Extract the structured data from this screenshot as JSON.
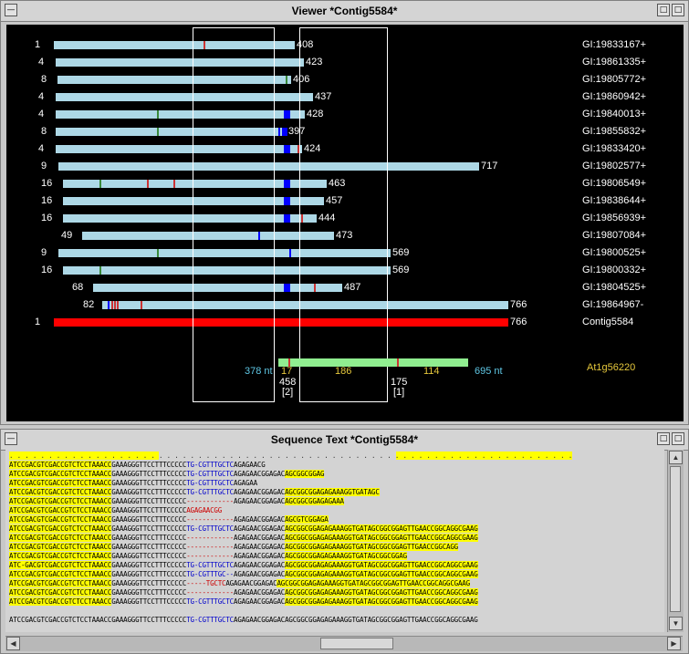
{
  "viewer": {
    "title": "Viewer *Contig5584*",
    "rows": [
      {
        "count": "1",
        "end": "408",
        "acc": "GI:19833167+"
      },
      {
        "count": "4",
        "end": "423",
        "acc": "GI:19861335+"
      },
      {
        "count": "8",
        "end": "406",
        "acc": "GI:19805772+"
      },
      {
        "count": "4",
        "end": "437",
        "acc": "GI:19860942+"
      },
      {
        "count": "4",
        "end": "428",
        "acc": "GI:19840013+"
      },
      {
        "count": "8",
        "end": "397",
        "acc": "GI:19855832+"
      },
      {
        "count": "4",
        "end": "424",
        "acc": "GI:19833420+"
      },
      {
        "count": "9",
        "end": "717",
        "acc": "GI:19802577+"
      },
      {
        "count": "16",
        "end": "463",
        "acc": "GI:19806549+"
      },
      {
        "count": "16",
        "end": "457",
        "acc": "GI:19838644+"
      },
      {
        "count": "16",
        "end": "444",
        "acc": "GI:19856939+"
      },
      {
        "count": "49",
        "end": "473",
        "acc": "GI:19807084+"
      },
      {
        "count": "9",
        "end": "569",
        "acc": "GI:19800525+"
      },
      {
        "count": "16",
        "end": "569",
        "acc": "GI:19800332+"
      },
      {
        "count": "68",
        "end": "487",
        "acc": "GI:19804525+"
      },
      {
        "count": "82",
        "end": "766",
        "acc": "GI:19864967-"
      },
      {
        "count": "1",
        "end": "766",
        "acc": "Contig5584"
      }
    ],
    "gene": {
      "start_label": "378 nt",
      "seg1": "17",
      "seg2": "186",
      "seg3": "114",
      "end_label": "695 nt",
      "name": "At1g56220",
      "pos1": "458",
      "pos1_idx": "[2]",
      "pos2": "175",
      "pos2_idx": "[1]"
    },
    "colors": {
      "read": "#add8e6",
      "contig": "#ff0000",
      "gene": "#90ee90",
      "cyan": "#5fc8e6",
      "yellow": "#e6c83c"
    }
  },
  "sequence": {
    "title": "Sequence Text *Contig5584*",
    "ruler": ". . . . . . . . . . . . . . . . . . . . . . . . . . . . . . . . . . . . . . . . . . . . . . . . . . . . . . . . . . . . . . . . . . . . . . . .",
    "lines": [
      {
        "a": "ATCCGACGTCGACCGTCTCCTAAACC",
        "b": "GAAAGGGTTCCTTTCCCCC",
        "c": "TG-CGTTTGCTC",
        "d": "AGAGAACG",
        "e": ""
      },
      {
        "a": "ATCCGACGTCGACCGTCTCCTAAACC",
        "b": "GAAAGGGTTCCTTTCCCCC",
        "c": "TG-CGTTTGCTC",
        "d": "AGAGAACGGAGAC",
        "e": "AGCGGCGGAG"
      },
      {
        "a": "ATCCGACGTCGACCGTCTCCTAAACC",
        "b": "GAAAGGGTTCCTTTCCCCC",
        "c": "TG-CGTTTGCTC",
        "d": "AGAGAA",
        "e": ""
      },
      {
        "a": "ATCCGACGTCGACCGTCTCCTAAACC",
        "b": "GAAAGGGTTCCTTTCCCCC",
        "c": "TG-CGTTTGCTC",
        "d": "AGAGAACGGAGAC",
        "e": "AGCGGCGGAGAGAAAGGTGATAGC"
      },
      {
        "a": "ATCCGACGTCGACCGTCTCCTAAACC",
        "b": "GAAAGGGTTCCTTTCCCCC",
        "c": "------------",
        "d": "AGAGAACGGAGAC",
        "e": "AGCGGCGGAGAGAAA"
      },
      {
        "a": "ATCCGACGTCGACCGTCTCCTAAACC",
        "b": "GAAAGGGTTCCTTTCCCCC",
        "c": "AGAGAACGG",
        "d": "",
        "e": ""
      },
      {
        "a": "ATCCGACGTCGACCGTCTCCTAAACC",
        "b": "GAAAGGGTTCCTTTCCCCC",
        "c": "------------",
        "d": "AGAGAACGGAGAC",
        "e": "AGCGTCGGAGA"
      },
      {
        "a": "ATCCGACGTCGACCGTCTCCTAAACC",
        "b": "GAAAGGGTTCCTTTCCCCC",
        "c": "TG-CGTTTGCTC",
        "d": "AGAGAACGGAGAC",
        "e": "AGCGGCGGAGAGAAAGGTGATAGCGGCGGAGTTGAACCGGCAGGCGAAG"
      },
      {
        "a": "ATCCGACGTCGACCGTCTCCTAAACC",
        "b": "GAAAGGGTTCCTTTCCCCC",
        "c": "------------",
        "d": "AGAGAACGGAGAC",
        "e": "AGCGGCGGAGAGAAAGGTGATAGCGGCGGAGTTGAACCGGCAGGCGAAG"
      },
      {
        "a": "ATCCGACGTCGACCGTCTCCTAAACC",
        "b": "GAAAGGGTTCCTTTCCCCC",
        "c": "------------",
        "d": "AGAGAACGGAGAC",
        "e": "AGCGGCGGAGAGAAAGGTGATAGCGGCGGAGTTGAACCGGCAGG"
      },
      {
        "a": "ATCCGACGTCGACCGTCTCCTAAACC",
        "b": "GAAAGGGTTCCTTTCCCCC",
        "c": "------------",
        "d": "AGAGAACGGAGAC",
        "e": "AGCGGCGGAGAGAAAGGTGATAGCGGCGGAG"
      },
      {
        "a": "ATC-GACGTCGACCGTCTCCTAAACC",
        "b": "GAAAGGGTTCCTTTCCCCC",
        "c": "TG-CGTTTGCTC",
        "d": "AGAGAACGGAGAC",
        "e": "AGCGGCGGAGAGAAAGGTGATAGCGGCGGAGTTGAACCGGCAGGCGAAG"
      },
      {
        "a": "ATCCGACGTCGACCGTCTCCTAAACC",
        "b": "GAAAGGGTTCCTTTCCCCC",
        "c": "TG-CGTTTGC--",
        "d": "AGAGAACGGAGAC",
        "e": "AGCGGCGGAGAGAAAGGTGATAGCGGCGGAGTTGAACCGGCAGGCGAAG"
      },
      {
        "a": "ATCCGACGTCGACCGTCTCCTAAACC",
        "b": "GAAAGGGTTCCTTTCCCCC",
        "c": "-----TGCTC",
        "d": "AGAGAACGGAGAC",
        "e": "AGCGGCGGAGAGAAAGGTGATAGCGGCGGAGTTGAACCGGCAGGCGAAG"
      },
      {
        "a": "ATCCGACGTCGACCGTCTCCTAAACC",
        "b": "GAAAGGGTTCCTTTCCCCC",
        "c": "------------",
        "d": "AGAGAACGGAGAC",
        "e": "AGCGGCGGAGAGAAAGGTGATAGCGGCGGAGTTGAACCGGCAGGCGAAG"
      },
      {
        "a": "ATCCGACGTCGACCGTCTCCTAAACC",
        "b": "GAAAGGGTTCCTTTCCCCC",
        "c": "TG-CGTTTGCTC",
        "d": "AGAGAACGGAGAC",
        "e": "AGCGGCGGAGAGAAAGGTGATAGCGGCGGAGTTGAACCGGCAGGCGAAG"
      },
      {
        "a": "",
        "b": "",
        "c": "",
        "d": "",
        "e": ""
      },
      {
        "a": "ATCCGACGTCGACCGTCTCCTAAACC",
        "b": "GAAAGGGTTCCTTTCCCCC",
        "c": "TG-CGTTTGCTC",
        "d": "AGAGAACGGAGAC",
        "e": "AGCGGCGGAGAGAAAGGTGATAGCGGCGGAGTTGAACCGGCAGGCGAAG"
      }
    ]
  },
  "icons": {
    "iconify": "□",
    "maximize": "□"
  }
}
